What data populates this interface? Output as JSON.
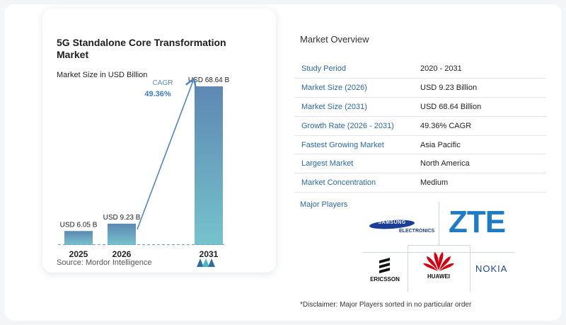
{
  "chart_data": {
    "type": "bar",
    "title": "5G Standalone Core Transformation Market",
    "subtitle": "Market Size in USD Billion",
    "categories": [
      "2025",
      "2026",
      "2031"
    ],
    "values": [
      6.05,
      9.23,
      68.64
    ],
    "value_labels": [
      "USD 6.05 B",
      "USD 9.23 B",
      "USD 68.64 B"
    ],
    "cagr_label": "CAGR",
    "cagr_value": "49.36%",
    "ylim": [
      0,
      70
    ],
    "colors": {
      "bar_top": "#5d88b2",
      "bar_bottom": "#76c3cc",
      "arrow": "#4f86bf",
      "baseline": "#6aa4c8"
    }
  },
  "source": "Source:  Mordor Intelligence",
  "overview": {
    "title": "Market Overview",
    "rows": [
      {
        "label": "Study Period",
        "value": "2020 - 2031"
      },
      {
        "label": "Market Size (2026)",
        "value": "USD 9.23 Billion"
      },
      {
        "label": "Market Size (2031)",
        "value": "USD 68.64 Billion"
      },
      {
        "label": "Growth Rate (2026 - 2031)",
        "value": "49.36% CAGR"
      },
      {
        "label": "Fastest Growing Market",
        "value": "Asia Pacific"
      },
      {
        "label": "Largest Market",
        "value": "North America"
      },
      {
        "label": "Market Concentration",
        "value": "Medium"
      }
    ]
  },
  "players": {
    "title": "Major Players",
    "samsung": {
      "top": "SAMSUNG",
      "bottom": "ELECTRONICS"
    },
    "zte": "ZTE",
    "ericsson": "ERICSSON",
    "huawei": "HUAWEI",
    "nokia": "NOKIA"
  },
  "disclaimer": "*Disclaimer: Major Players sorted in no particular order"
}
